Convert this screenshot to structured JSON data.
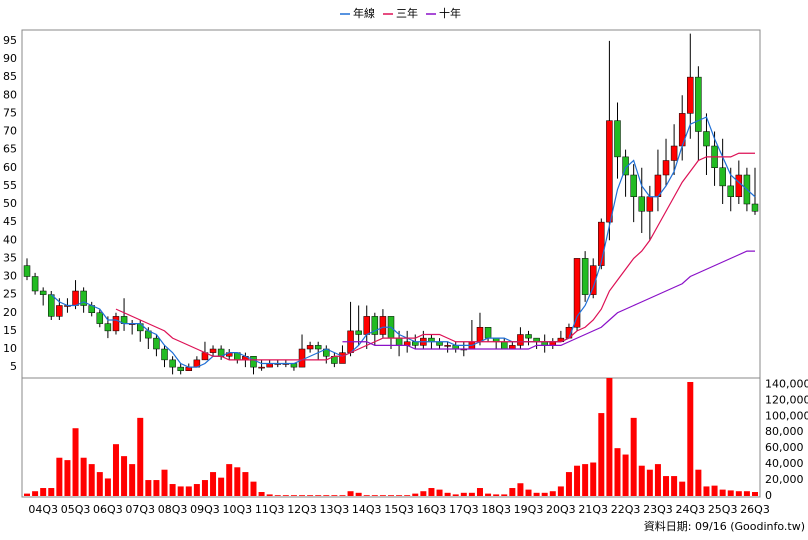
{
  "chart_data": {
    "type": "candlestick",
    "categories": [
      null,
      null,
      "04Q3",
      null,
      null,
      null,
      "05Q3",
      null,
      null,
      null,
      "06Q3",
      null,
      null,
      null,
      "07Q3",
      null,
      null,
      null,
      "08Q3",
      null,
      null,
      null,
      "09Q3",
      null,
      null,
      null,
      "10Q3",
      null,
      null,
      null,
      "11Q3",
      null,
      null,
      null,
      "12Q3",
      null,
      null,
      null,
      "13Q3",
      null,
      null,
      null,
      "14Q3",
      null,
      null,
      null,
      "15Q3",
      null,
      null,
      null,
      "16Q3",
      null,
      null,
      null,
      "17Q3",
      null,
      null,
      null,
      "18Q3",
      null,
      null,
      null,
      "19Q3",
      null,
      null,
      null,
      "20Q3",
      null,
      null,
      null,
      "21Q3",
      null,
      null,
      null,
      "22Q3",
      null,
      null,
      null,
      "23Q3",
      null,
      null,
      null,
      "24Q3",
      null,
      null,
      null,
      "25Q3",
      null,
      null,
      null,
      "26Q3"
    ],
    "open": [
      33,
      30,
      26,
      25,
      19,
      22,
      22,
      26,
      22,
      20,
      17,
      15,
      19,
      17,
      17,
      15,
      13,
      10,
      7,
      5,
      4,
      5,
      7,
      9,
      10,
      8,
      9,
      7,
      8,
      5,
      5,
      6,
      6,
      6,
      5,
      10,
      11,
      10,
      8,
      6,
      9,
      15,
      14,
      19,
      14,
      19,
      13,
      11,
      12,
      11,
      13,
      12,
      11,
      11,
      10,
      10,
      12,
      16,
      13,
      12,
      10,
      11,
      14,
      13,
      12,
      11,
      12,
      13,
      16,
      35,
      25,
      33,
      45,
      73,
      63,
      58,
      52,
      48,
      52,
      58,
      62,
      66,
      75,
      85,
      70,
      66,
      60,
      55,
      52,
      58,
      50
    ],
    "high": [
      35,
      31,
      27,
      26,
      24,
      24,
      29,
      27,
      23,
      21,
      19,
      20,
      24,
      18,
      18,
      16,
      14,
      11,
      8,
      6,
      6,
      8,
      12,
      11,
      11,
      10,
      9,
      9,
      8,
      7,
      7,
      7,
      7,
      6,
      14,
      12,
      12,
      11,
      9,
      11,
      23,
      22,
      22,
      20,
      21,
      19,
      15,
      15,
      14,
      15,
      14,
      13,
      12,
      12,
      12,
      18,
      20,
      16,
      13,
      13,
      12,
      16,
      15,
      13,
      14,
      13,
      15,
      17,
      35,
      37,
      35,
      46,
      95,
      78,
      65,
      61,
      60,
      55,
      65,
      68,
      72,
      80,
      97,
      88,
      75,
      70,
      68,
      60,
      62,
      60,
      60
    ],
    "low": [
      29,
      25,
      22,
      18,
      18,
      20,
      21,
      20,
      19,
      16,
      13,
      14,
      15,
      14,
      12,
      10,
      8,
      5,
      3,
      3,
      4,
      5,
      7,
      8,
      7,
      7,
      6,
      5,
      3,
      4,
      5,
      5,
      5,
      4,
      5,
      9,
      7,
      6,
      5,
      6,
      8,
      11,
      10,
      11,
      13,
      10,
      8,
      9,
      10,
      10,
      10,
      10,
      9,
      9,
      8,
      10,
      11,
      12,
      10,
      10,
      10,
      10,
      11,
      10,
      9,
      10,
      12,
      13,
      15,
      23,
      24,
      32,
      40,
      57,
      52,
      45,
      42,
      40,
      48,
      55,
      58,
      62,
      68,
      62,
      58,
      55,
      50,
      48,
      50,
      48,
      47
    ],
    "close": [
      30,
      26,
      25,
      19,
      22,
      22,
      26,
      22,
      20,
      17,
      15,
      19,
      17,
      17,
      15,
      13,
      10,
      7,
      5,
      4,
      5,
      7,
      9,
      10,
      8,
      9,
      7,
      8,
      5,
      5,
      6,
      6,
      6,
      5,
      10,
      11,
      10,
      8,
      6,
      9,
      15,
      14,
      19,
      14,
      19,
      13,
      11,
      12,
      11,
      13,
      12,
      11,
      11,
      10,
      10,
      12,
      16,
      13,
      12,
      10,
      11,
      14,
      13,
      12,
      11,
      12,
      13,
      16,
      35,
      25,
      33,
      45,
      73,
      63,
      58,
      52,
      48,
      52,
      58,
      62,
      66,
      75,
      85,
      70,
      66,
      60,
      55,
      52,
      58,
      50,
      48
    ],
    "up_color": "#ff0000",
    "down_color": "#22bb22",
    "ylim": [
      2,
      98
    ],
    "yticks": [
      5,
      10,
      15,
      20,
      25,
      30,
      35,
      40,
      45,
      50,
      55,
      60,
      65,
      70,
      75,
      80,
      85,
      90,
      95
    ],
    "grid": true,
    "legend": "top",
    "series": [
      {
        "name": "年線",
        "color": "#1f6fd6",
        "values": [
          null,
          null,
          null,
          25,
          23,
          22,
          22,
          23,
          22,
          21,
          18,
          18,
          17,
          17,
          17,
          15,
          14,
          11,
          9,
          6,
          5,
          5,
          6,
          8,
          8,
          9,
          9,
          8,
          7,
          6,
          6,
          6,
          6,
          6,
          7,
          8,
          9,
          10,
          9,
          8,
          9,
          11,
          14,
          15,
          16,
          16,
          14,
          13,
          12,
          12,
          12,
          12,
          12,
          11,
          11,
          11,
          12,
          13,
          13,
          13,
          12,
          12,
          12,
          12,
          12,
          12,
          12,
          13,
          19,
          22,
          27,
          34,
          44,
          54,
          60,
          62,
          55,
          52,
          52,
          55,
          59,
          66,
          72,
          73,
          74,
          68,
          63,
          58,
          56,
          54,
          52
        ]
      },
      {
        "name": "三年",
        "color": "#dd1155",
        "values": [
          null,
          null,
          null,
          null,
          null,
          null,
          null,
          null,
          null,
          null,
          null,
          21,
          20,
          19,
          18,
          17,
          16,
          15,
          13,
          12,
          11,
          10,
          9,
          8,
          8,
          7,
          7,
          7,
          7,
          7,
          7,
          7,
          7,
          7,
          7,
          7,
          7,
          7,
          8,
          8,
          9,
          10,
          11,
          12,
          13,
          13,
          13,
          13,
          13,
          14,
          14,
          14,
          13,
          12,
          12,
          12,
          12,
          12,
          12,
          12,
          12,
          12,
          12,
          12,
          12,
          12,
          12,
          13,
          15,
          16,
          18,
          21,
          26,
          29,
          32,
          35,
          37,
          40,
          44,
          48,
          52,
          56,
          59,
          62,
          63,
          63,
          63,
          63,
          64,
          64,
          64
        ]
      },
      {
        "name": "十年",
        "color": "#8a10c8",
        "values": [
          null,
          null,
          null,
          null,
          null,
          null,
          null,
          null,
          null,
          null,
          null,
          null,
          null,
          null,
          null,
          null,
          null,
          null,
          null,
          null,
          null,
          null,
          null,
          null,
          null,
          null,
          null,
          null,
          null,
          null,
          null,
          null,
          null,
          null,
          null,
          null,
          null,
          null,
          null,
          12,
          12,
          12,
          12,
          11,
          11,
          11,
          11,
          11,
          10,
          10,
          10,
          10,
          10,
          10,
          10,
          10,
          10,
          10,
          10,
          10,
          10,
          10,
          10,
          11,
          11,
          11,
          11,
          12,
          13,
          14,
          15,
          16,
          18,
          20,
          21,
          22,
          23,
          24,
          25,
          26,
          27,
          28,
          30,
          31,
          32,
          33,
          34,
          35,
          36,
          37,
          37
        ]
      }
    ],
    "volume": {
      "color": "#ff0000",
      "values": [
        3000,
        6000,
        10000,
        10000,
        48000,
        45000,
        85000,
        48000,
        40000,
        30000,
        22000,
        65000,
        50000,
        40000,
        98000,
        20000,
        20000,
        33000,
        15000,
        12000,
        12000,
        15000,
        20000,
        30000,
        23000,
        40000,
        36000,
        30000,
        18000,
        5000,
        2000,
        1000,
        1000,
        1000,
        1000,
        1000,
        1000,
        1000,
        1000,
        1000,
        6000,
        4000,
        1000,
        1000,
        1000,
        1000,
        1000,
        1000,
        3000,
        6000,
        10000,
        8000,
        4000,
        2000,
        4000,
        4000,
        10000,
        3000,
        2000,
        2000,
        10000,
        16000,
        8000,
        4000,
        4000,
        6000,
        12000,
        30000,
        38000,
        40000,
        42000,
        104000,
        148000,
        60000,
        52000,
        98000,
        38000,
        33000,
        40000,
        25000,
        25000,
        18000,
        143000,
        33000,
        12000,
        13000,
        8000,
        7000,
        6000,
        6000,
        5000
      ],
      "ylim": [
        0,
        148000
      ],
      "yticks": [
        0,
        {
          "value": 20000,
          "label": "20,000"
        },
        {
          "value": 40000,
          "label": "40,000"
        },
        {
          "value": 60000,
          "label": "60,000"
        },
        {
          "value": 80000,
          "label": "80,000"
        },
        {
          "value": 100000,
          "label": "100,000"
        },
        {
          "value": 120000,
          "label": "120,000"
        },
        {
          "value": 140000,
          "label": "140,000"
        }
      ]
    },
    "footer": "資料日期: 09/16 (Goodinfo.tw)"
  }
}
